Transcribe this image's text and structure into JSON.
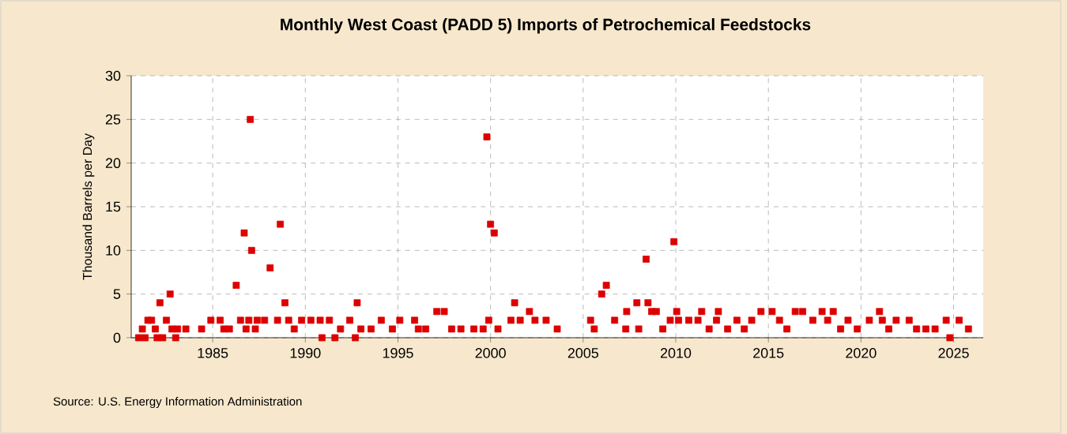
{
  "chart_data": {
    "type": "scatter",
    "title": "Monthly West Coast (PADD 5) Imports of Petrochemical Feedstocks",
    "ylabel": "Thousand Barrels per Day",
    "annotations": [
      "Source: U.S. Energy Information Administration"
    ],
    "xlim": [
      1980.6,
      2026.6
    ],
    "xticks": [
      1985,
      1990,
      1995,
      2000,
      2005,
      2010,
      2015,
      2020,
      2025
    ],
    "ylim": [
      0,
      30
    ],
    "yticks": [
      0,
      5,
      10,
      15,
      20,
      25,
      30
    ],
    "grid": true,
    "marker": "square",
    "series": [
      {
        "color": "#dd0000",
        "x": [
          1981.0,
          1981.2,
          1981.35,
          1981.5,
          1981.7,
          1981.9,
          1982.0,
          1982.15,
          1982.3,
          1982.5,
          1982.7,
          1982.8,
          1983.0,
          1983.1,
          1983.55,
          1984.4,
          1984.9,
          1985.4,
          1985.6,
          1985.9,
          1986.27,
          1986.5,
          1986.7,
          1986.8,
          1986.95,
          1987.03,
          1987.1,
          1987.3,
          1987.4,
          1987.8,
          1988.1,
          1988.5,
          1988.65,
          1988.9,
          1989.1,
          1989.4,
          1989.8,
          1990.3,
          1990.8,
          1990.9,
          1991.3,
          1991.6,
          1991.9,
          1992.4,
          1992.7,
          1992.8,
          1993.0,
          1993.55,
          1994.1,
          1994.7,
          1995.1,
          1995.9,
          1996.1,
          1996.5,
          1997.1,
          1997.5,
          1997.9,
          1998.4,
          1999.1,
          1999.6,
          1999.8,
          1999.9,
          2000.0,
          2000.2,
          2000.4,
          2001.1,
          2001.3,
          2001.6,
          2002.1,
          2002.4,
          2003.0,
          2003.6,
          2005.4,
          2005.6,
          2006.0,
          2006.25,
          2006.7,
          2007.3,
          2007.35,
          2007.9,
          2008.0,
          2008.4,
          2008.5,
          2008.7,
          2008.95,
          2009.3,
          2009.7,
          2009.9,
          2010.05,
          2010.15,
          2010.7,
          2011.2,
          2011.4,
          2011.8,
          2012.2,
          2012.3,
          2012.8,
          2013.3,
          2013.7,
          2014.1,
          2014.6,
          2015.2,
          2015.6,
          2016.0,
          2016.45,
          2016.85,
          2017.4,
          2017.9,
          2018.2,
          2018.5,
          2018.9,
          2019.3,
          2019.8,
          2020.45,
          2021.0,
          2021.15,
          2021.5,
          2021.9,
          2022.6,
          2023.0,
          2023.5,
          2024.0,
          2024.6,
          2024.8,
          2025.3,
          2025.8
        ],
        "values": [
          0,
          1,
          0,
          2,
          2,
          1,
          0,
          4,
          0,
          2,
          5,
          1,
          0,
          1,
          1,
          1,
          2,
          2,
          1,
          1,
          6,
          2,
          12,
          1,
          2,
          25,
          10,
          1,
          2,
          2,
          8,
          2,
          13,
          4,
          2,
          1,
          2,
          2,
          2,
          0,
          2,
          0,
          1,
          2,
          0,
          4,
          1,
          1,
          2,
          1,
          2,
          2,
          1,
          1,
          3,
          3,
          1,
          1,
          1,
          1,
          23,
          2,
          13,
          12,
          1,
          2,
          4,
          2,
          3,
          2,
          2,
          1,
          2,
          1,
          5,
          6,
          2,
          1,
          3,
          4,
          1,
          9,
          4,
          3,
          3,
          1,
          2,
          11,
          3,
          2,
          2,
          2,
          3,
          1,
          2,
          3,
          1,
          2,
          1,
          2,
          3,
          3,
          2,
          1,
          3,
          3,
          2,
          3,
          2,
          3,
          1,
          2,
          1,
          2,
          3,
          2,
          1,
          2,
          2,
          1,
          1,
          1,
          2,
          0,
          2,
          1
        ]
      }
    ]
  }
}
